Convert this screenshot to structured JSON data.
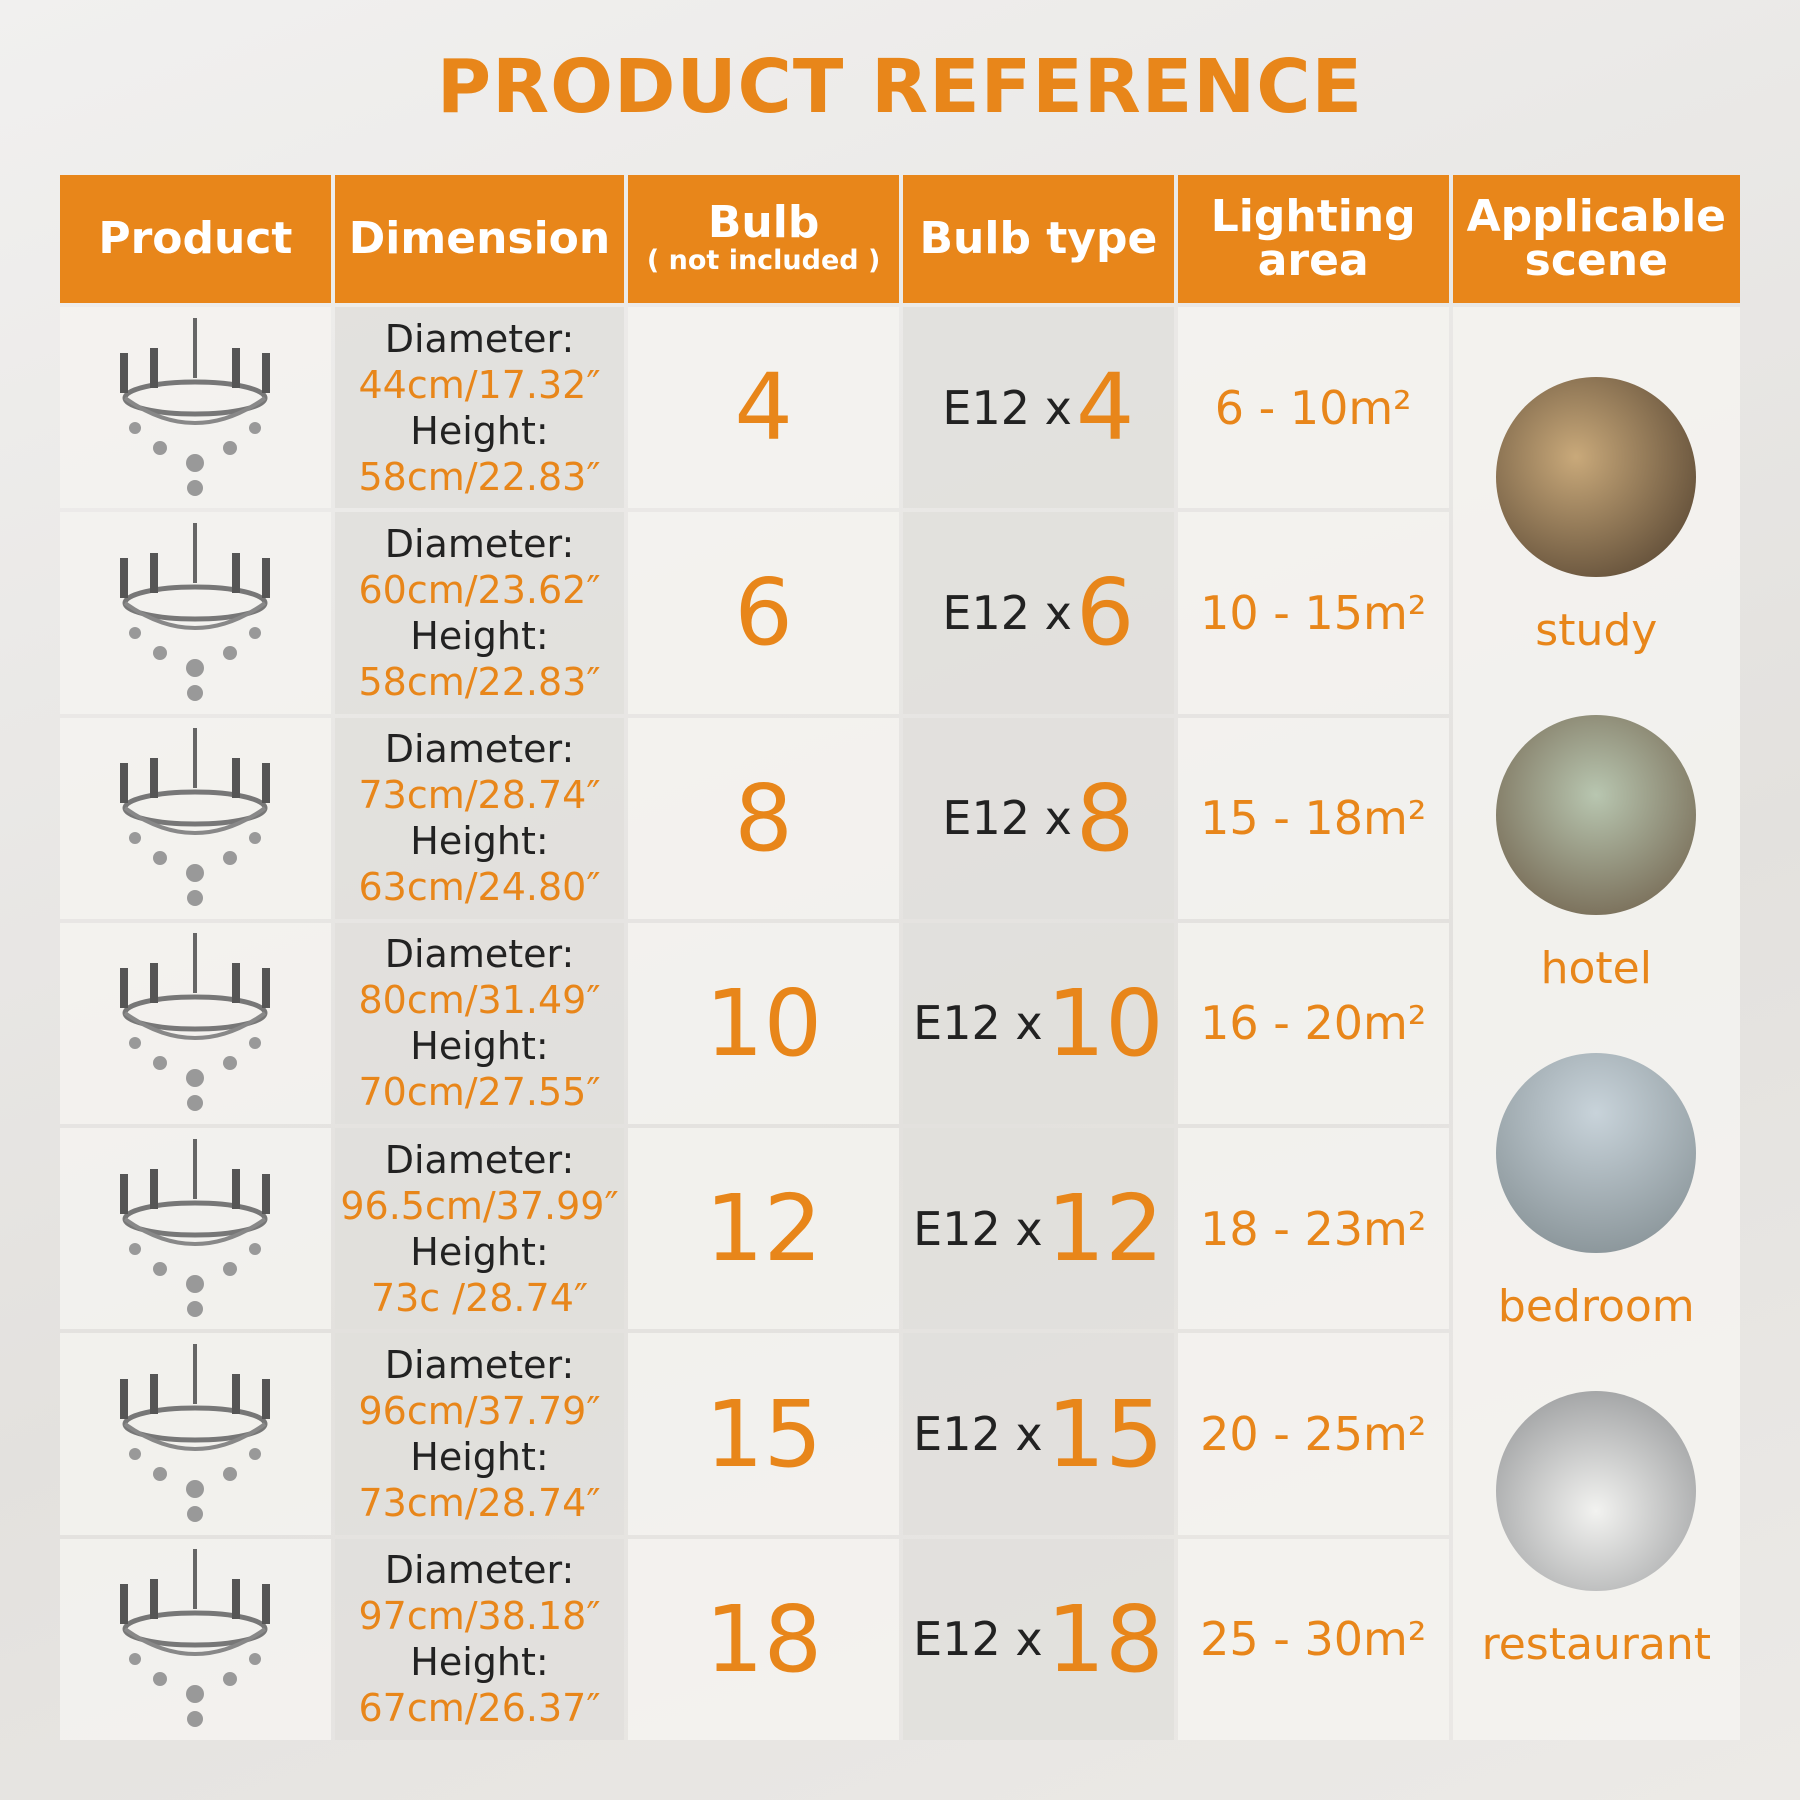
{
  "title": "PRODUCT REFERENCE",
  "table": {
    "headers": [
      {
        "title": "Product"
      },
      {
        "title": "Dimension"
      },
      {
        "title": "Bulb",
        "note": "( not included )"
      },
      {
        "title": "Bulb type"
      },
      {
        "title": "Lighting area"
      },
      {
        "title": "Applicable scene"
      }
    ],
    "rows": [
      {
        "diameter_label": "Diameter:",
        "diameter": "44cm/17.32″",
        "height_label": "Height:",
        "height": "58cm/22.83″",
        "bulbs": 4,
        "bulb_type": "E12 x",
        "bulb_count": 4,
        "lighting_area": "6 - 10m²"
      },
      {
        "diameter_label": "Diameter:",
        "diameter": "60cm/23.62″",
        "height_label": "Height:",
        "height": "58cm/22.83″",
        "bulbs": 6,
        "bulb_type": "E12 x",
        "bulb_count": 6,
        "lighting_area": "10 - 15m²"
      },
      {
        "diameter_label": "Diameter:",
        "diameter": "73cm/28.74″",
        "height_label": "Height:",
        "height": "63cm/24.80″",
        "bulbs": 8,
        "bulb_type": "E12 x",
        "bulb_count": 8,
        "lighting_area": "15 - 18m²"
      },
      {
        "diameter_label": "Diameter:",
        "diameter": "80cm/31.49″",
        "height_label": "Height:",
        "height": "70cm/27.55″",
        "bulbs": 10,
        "bulb_type": "E12 x",
        "bulb_count": 10,
        "lighting_area": "16 - 20m²"
      },
      {
        "diameter_label": "Diameter:",
        "diameter": "96.5cm/37.99″",
        "height_label": "Height:",
        "height": "73c /28.74″",
        "bulbs": 12,
        "bulb_type": "E12 x",
        "bulb_count": 12,
        "lighting_area": "18 - 23m²"
      },
      {
        "diameter_label": "Diameter:",
        "diameter": "96cm/37.79″",
        "height_label": "Height:",
        "height": "73cm/28.74″",
        "bulbs": 15,
        "bulb_type": "E12 x",
        "bulb_count": 15,
        "lighting_area": "20 - 25m²"
      },
      {
        "diameter_label": "Diameter:",
        "diameter": "97cm/38.18″",
        "height_label": "Height:",
        "height": "67cm/26.37″",
        "bulbs": 18,
        "bulb_type": "E12 x",
        "bulb_count": 18,
        "lighting_area": "25 - 30m²"
      }
    ],
    "scenes": [
      "study",
      "hotel",
      "bedroom",
      "restaurant"
    ]
  }
}
